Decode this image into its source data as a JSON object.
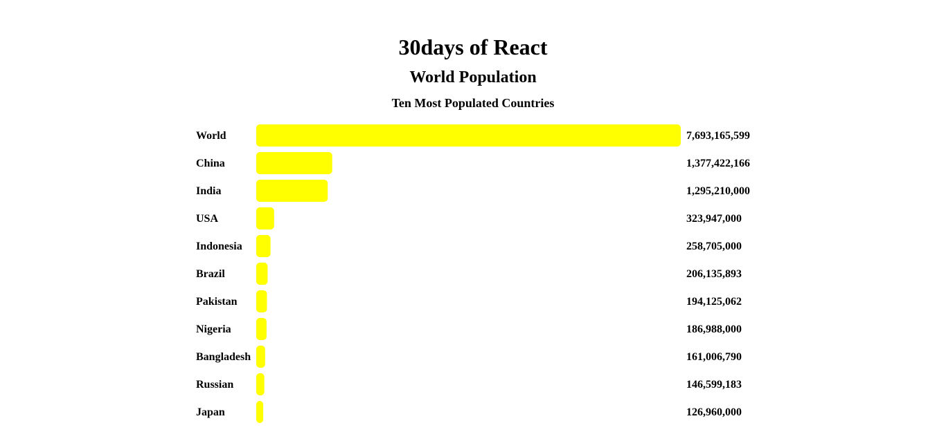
{
  "header": {
    "title": "30days of React",
    "subtitle": "World Population",
    "chart_heading": "Ten Most Populated Countries"
  },
  "colors": {
    "bar": "#ffff00",
    "text": "#000000",
    "background": "#ffffff"
  },
  "chart_data": {
    "type": "bar",
    "orientation": "horizontal",
    "title": "Ten Most Populated Countries",
    "categories": [
      "World",
      "China",
      "India",
      "USA",
      "Indonesia",
      "Brazil",
      "Pakistan",
      "Nigeria",
      "Bangladesh",
      "Russian",
      "Japan"
    ],
    "values": [
      7693165599,
      1377422166,
      1295210000,
      323947000,
      258705000,
      206135893,
      194125062,
      186988000,
      161006790,
      146599183,
      126960000
    ],
    "value_labels": [
      "7,693,165,599",
      "1,377,422,166",
      "1,295,210,000",
      "323,947,000",
      "258,705,000",
      "206,135,893",
      "194,125,062",
      "186,988,000",
      "161,006,790",
      "146,599,183",
      "126,960,000"
    ],
    "xlim": [
      0,
      7693165599
    ],
    "grid": false,
    "legend": "none"
  }
}
